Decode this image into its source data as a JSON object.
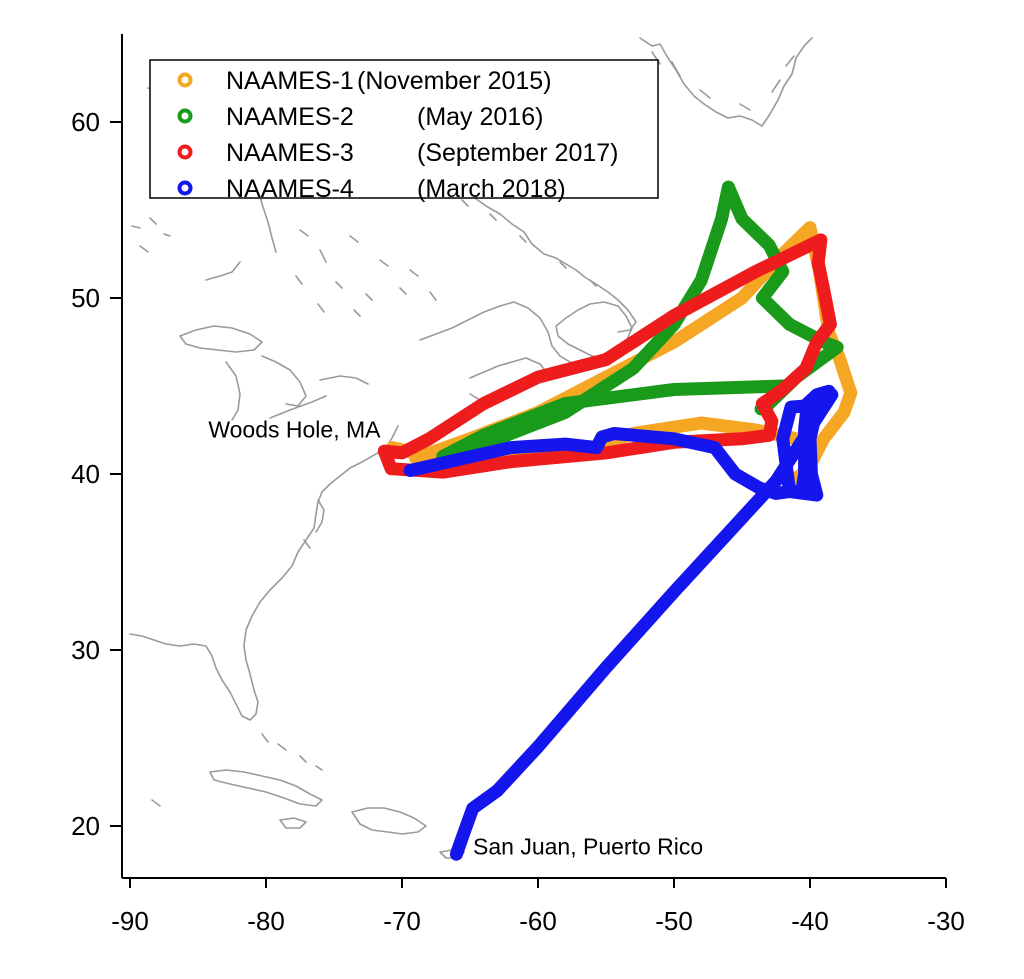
{
  "chart_data": {
    "type": "map",
    "xlim": [
      -90.5,
      -30
    ],
    "ylim": [
      17,
      65
    ],
    "x_ticks": [
      -90,
      -80,
      -70,
      -60,
      -50,
      -40,
      -30
    ],
    "y_ticks": [
      20,
      30,
      40,
      50,
      60
    ],
    "x_tick_labels": [
      "-90",
      "-80",
      "-70",
      "-60",
      "-50",
      "-40",
      "-30"
    ],
    "y_tick_labels": [
      "20",
      "30",
      "40",
      "50",
      "60"
    ],
    "legend_position": "top-left",
    "series": [
      {
        "name": "NAAMES-1",
        "period": "(November 2015)",
        "color": "#f5a623",
        "track": [
          [
            -70.7,
            41.5
          ],
          [
            -68,
            41
          ],
          [
            -63,
            40.8
          ],
          [
            -57,
            41.2
          ],
          [
            -53,
            42.3
          ],
          [
            -48,
            42.9
          ],
          [
            -44,
            42.5
          ],
          [
            -41,
            42
          ],
          [
            -40.3,
            40.7
          ],
          [
            -40.2,
            39.6
          ],
          [
            -41.5,
            39.5
          ],
          [
            -40.2,
            40.2
          ],
          [
            -39,
            42
          ],
          [
            -37.5,
            43.5
          ],
          [
            -37,
            44.6
          ],
          [
            -37.8,
            46.5
          ],
          [
            -38.6,
            48
          ],
          [
            -39.3,
            51.5
          ],
          [
            -40,
            54
          ],
          [
            -42,
            52.5
          ],
          [
            -45,
            50
          ],
          [
            -50,
            47.5
          ],
          [
            -55,
            45.5
          ],
          [
            -60,
            43.5
          ],
          [
            -65,
            42
          ],
          [
            -69,
            40.9
          ]
        ]
      },
      {
        "name": "NAAMES-2",
        "period": "(May 2016)",
        "color": "#1a9a1a",
        "track": [
          [
            -67,
            41
          ],
          [
            -63,
            42
          ],
          [
            -58,
            43.5
          ],
          [
            -53,
            46
          ],
          [
            -50,
            48.5
          ],
          [
            -48,
            51
          ],
          [
            -46.5,
            54.5
          ],
          [
            -46,
            56.3
          ],
          [
            -45,
            54.5
          ],
          [
            -43,
            53
          ],
          [
            -42,
            51.5
          ],
          [
            -43.5,
            50
          ],
          [
            -41.5,
            48.5
          ],
          [
            -39,
            47.5
          ],
          [
            -38,
            47.2
          ],
          [
            -41,
            45.5
          ],
          [
            -43,
            44
          ],
          [
            -43.6,
            43.7
          ],
          [
            -42,
            45
          ],
          [
            -50,
            44.8
          ],
          [
            -58,
            44
          ],
          [
            -64,
            42.2
          ],
          [
            -67,
            41
          ]
        ]
      },
      {
        "name": "NAAMES-3",
        "period": "(September 2017)",
        "color": "#ee1c1c",
        "track": [
          [
            -70.8,
            40.3
          ],
          [
            -67,
            40.1
          ],
          [
            -62,
            40.7
          ],
          [
            -55,
            41.2
          ],
          [
            -50,
            41.8
          ],
          [
            -45,
            42
          ],
          [
            -43,
            42.2
          ],
          [
            -42.8,
            43
          ],
          [
            -43.5,
            44
          ],
          [
            -42,
            44.8
          ],
          [
            -40.3,
            46
          ],
          [
            -39.5,
            47.5
          ],
          [
            -38.5,
            48.5
          ],
          [
            -39,
            50.5
          ],
          [
            -39.4,
            52
          ],
          [
            -39.2,
            53.3
          ],
          [
            -44,
            51.5
          ],
          [
            -50,
            49
          ],
          [
            -55,
            46.5
          ],
          [
            -60,
            45.5
          ],
          [
            -64,
            44
          ],
          [
            -68,
            42
          ],
          [
            -70,
            41.2
          ],
          [
            -71.3,
            41.3
          ],
          [
            -70.8,
            40.3
          ]
        ]
      },
      {
        "name": "NAAMES-4",
        "period": "(March 2018)",
        "color": "#1515ee",
        "track": [
          [
            -69.4,
            40.2
          ],
          [
            -66,
            40.8
          ],
          [
            -62,
            41.5
          ],
          [
            -58,
            41.7
          ],
          [
            -55.7,
            41.5
          ],
          [
            -55.3,
            42.1
          ],
          [
            -54.4,
            42.3
          ],
          [
            -50,
            42
          ],
          [
            -47,
            41.5
          ],
          [
            -45.5,
            40
          ],
          [
            -43.7,
            39.2
          ],
          [
            -42.5,
            38.9
          ],
          [
            -41.5,
            39
          ],
          [
            -40.6,
            39
          ],
          [
            -40.4,
            40
          ],
          [
            -40.4,
            42.5
          ],
          [
            -40.2,
            44
          ],
          [
            -39.5,
            44.5
          ],
          [
            -38.6,
            44.7
          ],
          [
            -38.9,
            44
          ],
          [
            -39.5,
            43.7
          ],
          [
            -40,
            42
          ],
          [
            -39.9,
            40
          ],
          [
            -39.5,
            38.8
          ],
          [
            -41.5,
            39
          ],
          [
            -42,
            42
          ],
          [
            -41.4,
            43.8
          ],
          [
            -39.8,
            43.9
          ],
          [
            -38.4,
            44.5
          ],
          [
            -42.5,
            39.6
          ],
          [
            -45,
            37.5
          ],
          [
            -50,
            33.3
          ],
          [
            -55,
            29
          ],
          [
            -60,
            24.5
          ],
          [
            -63,
            22
          ],
          [
            -64.8,
            21
          ],
          [
            -65.5,
            19.5
          ],
          [
            -66,
            18.4
          ]
        ]
      }
    ],
    "annotations": [
      {
        "text": "Woods Hole, MA",
        "lon": -70.7,
        "lat": 41.5
      },
      {
        "text": "San Juan, Puerto Rico",
        "lon": -66.1,
        "lat": 18.5
      }
    ],
    "coastline_color": "#9a9a9a"
  }
}
